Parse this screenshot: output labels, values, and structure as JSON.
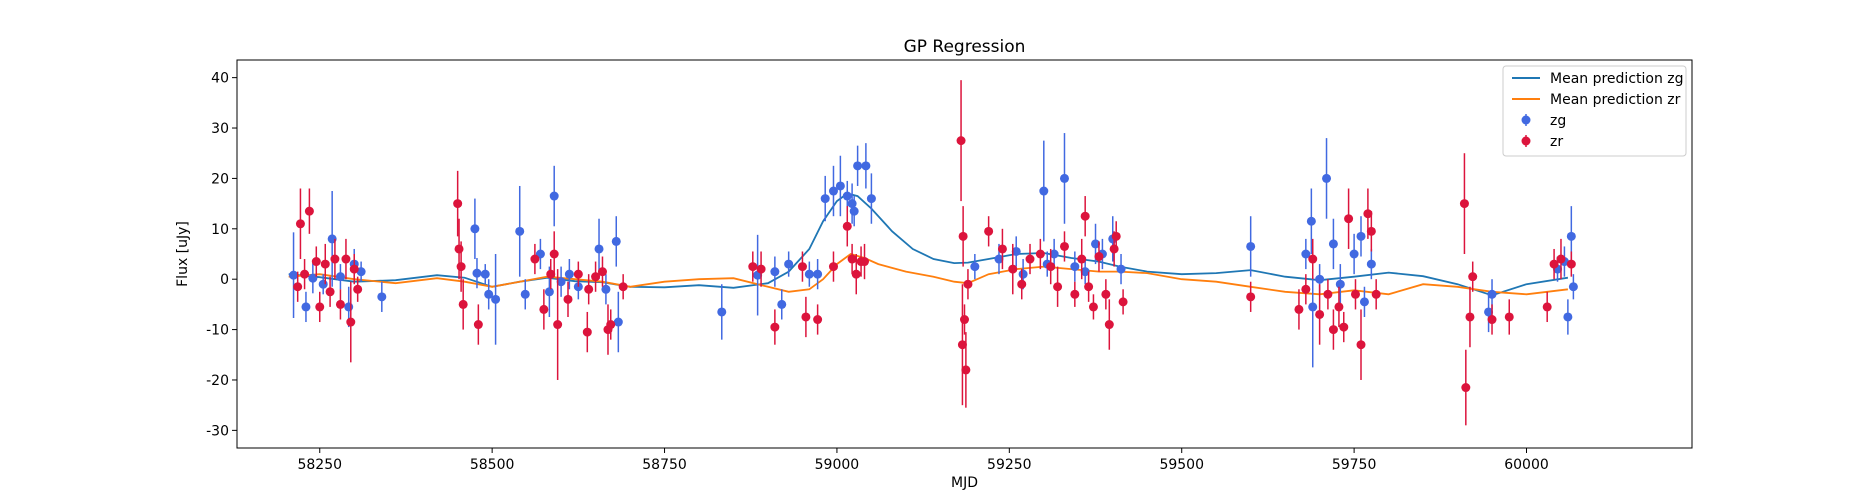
{
  "chart_data": {
    "type": "scatter",
    "title": "GP Regression",
    "xlabel": "MJD",
    "ylabel": "Flux [uJy]",
    "xlim": [
      58130,
      60240
    ],
    "ylim": [
      -33.5,
      43.5
    ],
    "xticks": [
      58250,
      58500,
      58750,
      59000,
      59250,
      59500,
      59750,
      60000
    ],
    "yticks": [
      -30,
      -20,
      -10,
      0,
      10,
      20,
      30,
      40
    ],
    "grid": false,
    "legend_position": "top-right",
    "series": [
      {
        "name": "Mean prediction zg",
        "kind": "line",
        "color": "#1f77b4",
        "x": [
          58205,
          58250,
          58300,
          58360,
          58420,
          58460,
          58500,
          58540,
          58580,
          58620,
          58660,
          58700,
          58750,
          58800,
          58850,
          58900,
          58930,
          58960,
          58980,
          59000,
          59015,
          59030,
          59050,
          59080,
          59110,
          59140,
          59170,
          59190,
          59220,
          59260,
          59300,
          59340,
          59380,
          59410,
          59450,
          59500,
          59550,
          59600,
          59650,
          59700,
          59750,
          59800,
          59850,
          59900,
          59950,
          60000,
          60060
        ],
        "y": [
          1.0,
          0.4,
          -0.5,
          -0.2,
          0.8,
          0.3,
          -1.5,
          -0.5,
          0.3,
          -0.4,
          -0.6,
          -1.5,
          -1.6,
          -1.2,
          -1.7,
          -0.8,
          1.5,
          6.0,
          11.5,
          15.5,
          17.0,
          16.5,
          14.0,
          9.5,
          6.0,
          4.0,
          3.2,
          3.3,
          4.0,
          5.0,
          5.2,
          4.2,
          3.5,
          2.5,
          1.5,
          1.0,
          1.2,
          1.8,
          0.5,
          -0.2,
          0.5,
          1.3,
          0.6,
          -1.0,
          -3.2,
          -1.0,
          0.3
        ]
      },
      {
        "name": "Mean prediction zr",
        "kind": "line",
        "color": "#ff7f0e",
        "x": [
          58205,
          58250,
          58300,
          58360,
          58420,
          58460,
          58500,
          58540,
          58580,
          58620,
          58660,
          58700,
          58750,
          58800,
          58850,
          58900,
          58930,
          58960,
          58980,
          59000,
          59020,
          59040,
          59060,
          59100,
          59140,
          59170,
          59190,
          59220,
          59260,
          59300,
          59340,
          59380,
          59410,
          59450,
          59500,
          59550,
          59600,
          59650,
          59700,
          59750,
          59800,
          59850,
          59900,
          59950,
          60000,
          60060
        ],
        "y": [
          0.5,
          1.0,
          0.0,
          -0.8,
          0.2,
          -0.5,
          -1.5,
          -0.5,
          0.5,
          0.0,
          -0.5,
          -1.5,
          -0.5,
          0.0,
          0.2,
          -1.5,
          -2.5,
          -2.0,
          0.0,
          3.0,
          5.0,
          4.2,
          3.0,
          1.5,
          0.5,
          -0.5,
          -0.8,
          1.0,
          2.0,
          2.5,
          2.0,
          1.5,
          1.5,
          1.2,
          0.0,
          -0.5,
          -1.5,
          -2.5,
          -3.0,
          -2.2,
          -3.0,
          -1.0,
          -1.5,
          -2.5,
          -3.0,
          -2.0
        ]
      },
      {
        "name": "zg",
        "kind": "errorbar",
        "color": "#4169e1",
        "points": [
          [
            58212,
            0.8,
            8.5
          ],
          [
            58230,
            -5.5,
            3.0
          ],
          [
            58240,
            0.2,
            3.0
          ],
          [
            58255,
            -1.0,
            2.0
          ],
          [
            58268,
            8.0,
            9.5
          ],
          [
            58280,
            0.5,
            2.5
          ],
          [
            58292,
            -5.5,
            4.0
          ],
          [
            58300,
            3.0,
            3.0
          ],
          [
            58310,
            1.5,
            2.0
          ],
          [
            58340,
            -3.5,
            3.0
          ],
          [
            58475,
            10.0,
            6.0
          ],
          [
            58478,
            1.2,
            3.0
          ],
          [
            58490,
            1.0,
            2.0
          ],
          [
            58495,
            -3.0,
            3.0
          ],
          [
            58505,
            -4.0,
            9.0
          ],
          [
            58540,
            9.5,
            9.0
          ],
          [
            58548,
            -3.0,
            3.0
          ],
          [
            58570,
            5.0,
            3.0
          ],
          [
            58583,
            -2.5,
            5.0
          ],
          [
            58590,
            16.5,
            6.0
          ],
          [
            58600,
            -0.5,
            3.0
          ],
          [
            58612,
            1.0,
            3.0
          ],
          [
            58625,
            -1.5,
            2.5
          ],
          [
            58655,
            6.0,
            6.0
          ],
          [
            58665,
            -2.0,
            3.0
          ],
          [
            58680,
            7.5,
            5.0
          ],
          [
            58683,
            -8.5,
            6.0
          ],
          [
            58833,
            -6.5,
            5.5
          ],
          [
            58885,
            0.8,
            8.0
          ],
          [
            58910,
            1.5,
            3.0
          ],
          [
            58920,
            -5.0,
            3.0
          ],
          [
            58930,
            3.0,
            2.5
          ],
          [
            58960,
            1.0,
            2.5
          ],
          [
            58972,
            1.0,
            3.0
          ],
          [
            58983,
            16.0,
            4.5
          ],
          [
            58995,
            17.5,
            5.0
          ],
          [
            59005,
            18.5,
            6.0
          ],
          [
            59015,
            16.5,
            3.0
          ],
          [
            59022,
            15.0,
            4.0
          ],
          [
            59025,
            13.5,
            3.0
          ],
          [
            59030,
            22.5,
            4.0
          ],
          [
            59042,
            22.5,
            4.5
          ],
          [
            59050,
            16.0,
            5.0
          ],
          [
            59200,
            2.5,
            2.5
          ],
          [
            59235,
            4.0,
            3.0
          ],
          [
            59260,
            5.5,
            3.0
          ],
          [
            59270,
            1.0,
            3.0
          ],
          [
            59300,
            17.5,
            10.0
          ],
          [
            59305,
            3.0,
            2.5
          ],
          [
            59315,
            5.0,
            3.0
          ],
          [
            59330,
            20.0,
            9.0
          ],
          [
            59345,
            2.5,
            3.0
          ],
          [
            59360,
            1.5,
            2.5
          ],
          [
            59375,
            7.0,
            4.0
          ],
          [
            59385,
            5.0,
            3.0
          ],
          [
            59400,
            8.0,
            4.5
          ],
          [
            59412,
            2.0,
            3.0
          ],
          [
            59600,
            6.5,
            6.0
          ],
          [
            59680,
            5.0,
            3.0
          ],
          [
            59688,
            11.5,
            6.5
          ],
          [
            59690,
            -5.5,
            12.0
          ],
          [
            59700,
            0.0,
            3.0
          ],
          [
            59710,
            20.0,
            8.0
          ],
          [
            59720,
            7.0,
            5.0
          ],
          [
            59730,
            -1.0,
            4.0
          ],
          [
            59750,
            5.0,
            4.0
          ],
          [
            59760,
            8.5,
            4.0
          ],
          [
            59765,
            -4.5,
            3.0
          ],
          [
            59775,
            3.0,
            3.0
          ],
          [
            59945,
            -6.5,
            4.0
          ],
          [
            59950,
            -3.0,
            3.0
          ],
          [
            60045,
            2.0,
            2.5
          ],
          [
            60055,
            3.5,
            3.0
          ],
          [
            60060,
            -7.5,
            3.5
          ],
          [
            60065,
            8.5,
            6.0
          ],
          [
            60068,
            -1.5,
            2.5
          ]
        ]
      },
      {
        "name": "zr",
        "kind": "errorbar",
        "color": "#dc143c",
        "points": [
          [
            58218,
            -1.5,
            3.0
          ],
          [
            58222,
            11.0,
            7.0
          ],
          [
            58228,
            1.0,
            3.0
          ],
          [
            58235,
            13.5,
            4.5
          ],
          [
            58245,
            3.5,
            3.0
          ],
          [
            58250,
            -5.5,
            3.0
          ],
          [
            58258,
            3.0,
            4.0
          ],
          [
            58265,
            -2.5,
            3.0
          ],
          [
            58272,
            4.0,
            4.0
          ],
          [
            58280,
            -5.0,
            3.0
          ],
          [
            58288,
            4.0,
            4.0
          ],
          [
            58295,
            -8.5,
            8.0
          ],
          [
            58300,
            2.0,
            3.0
          ],
          [
            58305,
            -2.0,
            2.5
          ],
          [
            58450,
            15.0,
            6.5
          ],
          [
            58452,
            6.0,
            6.0
          ],
          [
            58455,
            2.5,
            5.0
          ],
          [
            58458,
            -5.0,
            5.0
          ],
          [
            58480,
            -9.0,
            4.0
          ],
          [
            58562,
            4.0,
            3.0
          ],
          [
            58575,
            -6.0,
            4.0
          ],
          [
            58585,
            1.0,
            3.0
          ],
          [
            58590,
            5.0,
            4.5
          ],
          [
            58595,
            -9.0,
            11.0
          ],
          [
            58610,
            -4.0,
            3.5
          ],
          [
            58625,
            1.0,
            2.5
          ],
          [
            58638,
            -10.5,
            4.0
          ],
          [
            58640,
            -2.0,
            3.0
          ],
          [
            58650,
            0.5,
            3.0
          ],
          [
            58660,
            1.5,
            3.0
          ],
          [
            58668,
            -10.0,
            5.0
          ],
          [
            58672,
            -9.0,
            3.0
          ],
          [
            58690,
            -1.5,
            2.5
          ],
          [
            58878,
            2.5,
            3.0
          ],
          [
            58890,
            2.0,
            3.5
          ],
          [
            58910,
            -9.5,
            3.5
          ],
          [
            58950,
            2.5,
            3.0
          ],
          [
            58955,
            -7.5,
            4.0
          ],
          [
            58972,
            -8.0,
            3.0
          ],
          [
            58995,
            2.5,
            3.0
          ],
          [
            59015,
            10.5,
            4.0
          ],
          [
            59022,
            4.0,
            3.0
          ],
          [
            59028,
            1.0,
            4.0
          ],
          [
            59035,
            3.5,
            3.0
          ],
          [
            59040,
            3.5,
            3.5
          ],
          [
            59180,
            27.5,
            12.0
          ],
          [
            59182,
            -13.0,
            12.0
          ],
          [
            59183,
            8.5,
            6.0
          ],
          [
            59185,
            -8.0,
            3.0
          ],
          [
            59187,
            -18.0,
            7.5
          ],
          [
            59190,
            -1.0,
            3.0
          ],
          [
            59220,
            9.5,
            3.0
          ],
          [
            59240,
            6.0,
            4.0
          ],
          [
            59255,
            2.0,
            5.0
          ],
          [
            59268,
            -1.0,
            3.0
          ],
          [
            59280,
            4.0,
            3.0
          ],
          [
            59295,
            5.0,
            3.0
          ],
          [
            59310,
            2.5,
            3.5
          ],
          [
            59320,
            -1.5,
            4.0
          ],
          [
            59330,
            6.5,
            3.0
          ],
          [
            59345,
            -3.0,
            2.5
          ],
          [
            59355,
            4.0,
            4.0
          ],
          [
            59360,
            12.5,
            4.0
          ],
          [
            59365,
            -1.5,
            3.0
          ],
          [
            59372,
            -5.5,
            2.5
          ],
          [
            59380,
            4.5,
            3.0
          ],
          [
            59390,
            -3.0,
            3.0
          ],
          [
            59395,
            -9.0,
            5.0
          ],
          [
            59402,
            6.0,
            3.5
          ],
          [
            59405,
            8.5,
            3.0
          ],
          [
            59415,
            -4.5,
            2.5
          ],
          [
            59600,
            -3.5,
            3.0
          ],
          [
            59670,
            -6.0,
            4.0
          ],
          [
            59680,
            -2.0,
            3.0
          ],
          [
            59690,
            4.0,
            4.0
          ],
          [
            59700,
            -7.0,
            6.0
          ],
          [
            59712,
            -3.0,
            3.0
          ],
          [
            59720,
            -10.0,
            4.0
          ],
          [
            59728,
            -5.5,
            4.0
          ],
          [
            59735,
            -9.5,
            3.0
          ],
          [
            59742,
            12.0,
            6.0
          ],
          [
            59752,
            -3.0,
            3.0
          ],
          [
            59760,
            -13.0,
            7.0
          ],
          [
            59770,
            13.0,
            5.0
          ],
          [
            59775,
            9.5,
            4.0
          ],
          [
            59782,
            -3.0,
            3.0
          ],
          [
            59910,
            15.0,
            10.0
          ],
          [
            59912,
            -21.5,
            7.5
          ],
          [
            59918,
            -7.5,
            6.0
          ],
          [
            59922,
            0.5,
            3.0
          ],
          [
            59950,
            -8.0,
            3.0
          ],
          [
            59975,
            -7.5,
            3.5
          ],
          [
            60030,
            -5.5,
            3.0
          ],
          [
            60040,
            3.0,
            3.0
          ],
          [
            60050,
            4.0,
            4.0
          ],
          [
            60065,
            3.0,
            2.5
          ]
        ]
      }
    ]
  }
}
